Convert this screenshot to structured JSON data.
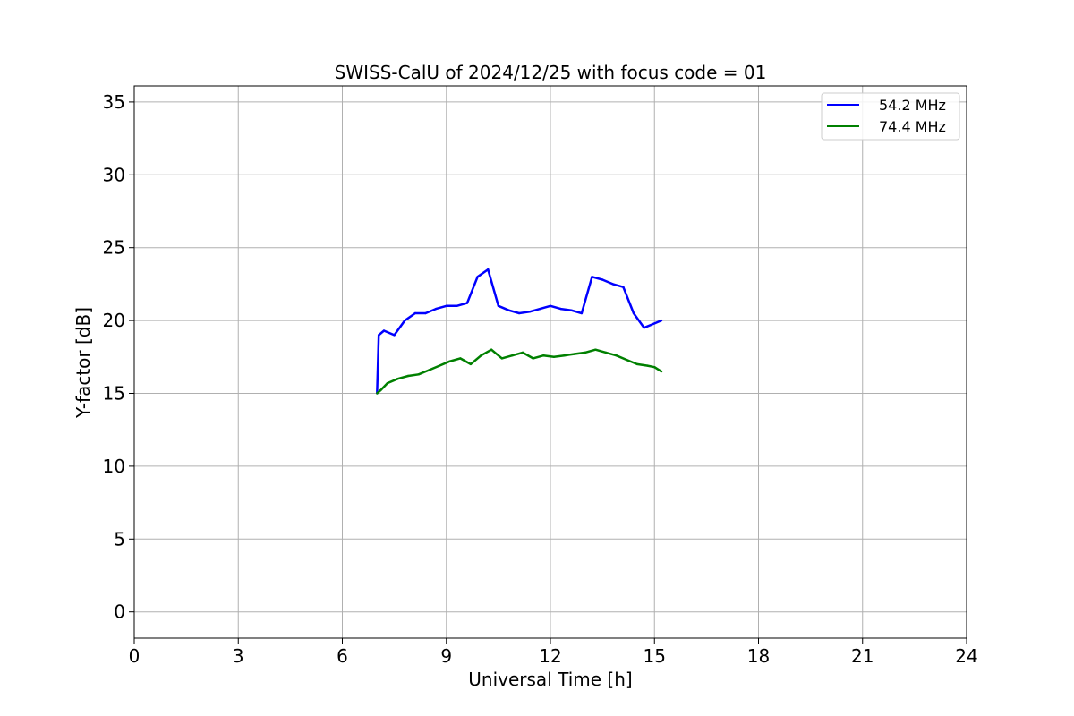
{
  "chart_data": {
    "type": "line",
    "title": "SWISS-CalU of 2024/12/25 with focus code = 01",
    "xlabel": "Universal Time [h]",
    "ylabel": "Y-factor [dB]",
    "xlim": [
      0,
      24
    ],
    "ylim": [
      -1.8,
      36.1
    ],
    "xticks": [
      0,
      3,
      6,
      9,
      12,
      15,
      18,
      21,
      24
    ],
    "xtick_labels": [
      "0",
      "3",
      "6",
      "9",
      "12",
      "15",
      "18",
      "21",
      "24"
    ],
    "yticks": [
      0,
      5,
      10,
      15,
      20,
      25,
      30,
      35
    ],
    "ytick_labels": [
      "0",
      "5",
      "10",
      "15",
      "20",
      "25",
      "30",
      "35"
    ],
    "grid": true,
    "legend_position": "upper right",
    "series": [
      {
        "name": "54.2 MHz",
        "color": "#0000ff",
        "x": [
          7.0,
          7.05,
          7.2,
          7.5,
          7.8,
          8.1,
          8.4,
          8.7,
          9.0,
          9.3,
          9.6,
          9.9,
          10.2,
          10.5,
          10.8,
          11.1,
          11.4,
          11.7,
          12.0,
          12.3,
          12.6,
          12.9,
          13.2,
          13.5,
          13.8,
          14.1,
          14.4,
          14.7,
          15.0,
          15.2
        ],
        "values": [
          15.0,
          19.0,
          19.3,
          19.0,
          20.0,
          20.5,
          20.5,
          20.8,
          21.0,
          21.0,
          21.2,
          23.0,
          23.5,
          21.0,
          20.7,
          20.5,
          20.6,
          20.8,
          21.0,
          20.8,
          20.7,
          20.5,
          23.0,
          22.8,
          22.5,
          22.3,
          20.5,
          19.5,
          19.8,
          20.0
        ]
      },
      {
        "name": "74.4 MHz",
        "color": "#008000",
        "x": [
          7.0,
          7.1,
          7.3,
          7.6,
          7.9,
          8.2,
          8.5,
          8.8,
          9.1,
          9.4,
          9.7,
          10.0,
          10.3,
          10.6,
          10.9,
          11.2,
          11.5,
          11.8,
          12.1,
          12.4,
          12.7,
          13.0,
          13.3,
          13.6,
          13.9,
          14.2,
          14.5,
          14.8,
          15.0,
          15.2
        ],
        "values": [
          15.0,
          15.2,
          15.7,
          16.0,
          16.2,
          16.3,
          16.6,
          16.9,
          17.2,
          17.4,
          17.0,
          17.6,
          18.0,
          17.4,
          17.6,
          17.8,
          17.4,
          17.6,
          17.5,
          17.6,
          17.7,
          17.8,
          18.0,
          17.8,
          17.6,
          17.3,
          17.0,
          16.9,
          16.8,
          16.5
        ]
      }
    ]
  },
  "legend": {
    "items": [
      {
        "label": "54.2 MHz",
        "color": "#0000ff"
      },
      {
        "label": "74.4 MHz",
        "color": "#008000"
      }
    ]
  },
  "colors": {
    "grid": "#b0b0b0",
    "axes": "#000000",
    "background": "#ffffff"
  }
}
